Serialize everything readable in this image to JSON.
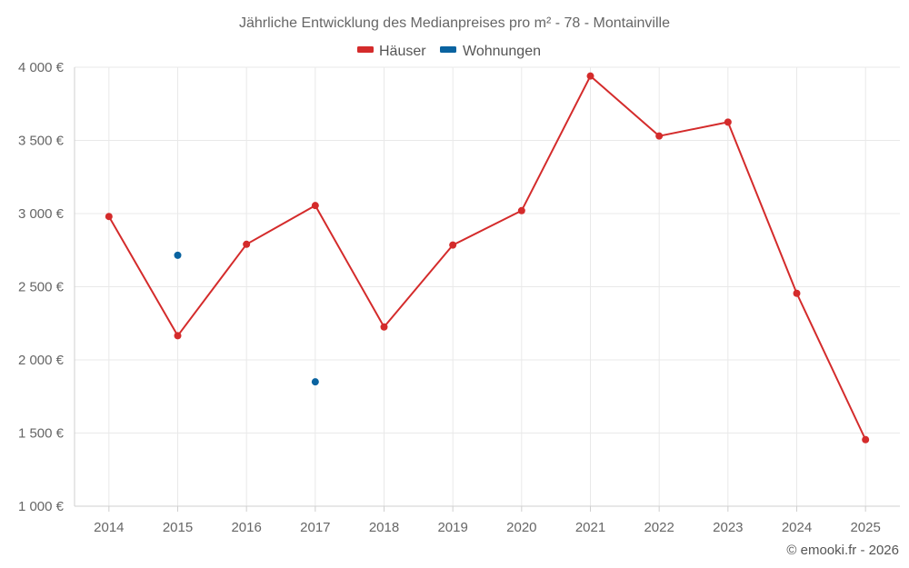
{
  "chart_data": {
    "type": "line",
    "title": "Jährliche Entwicklung des Medianpreises pro m² - 78 - Montainville",
    "categories": [
      "2014",
      "2015",
      "2016",
      "2017",
      "2018",
      "2019",
      "2020",
      "2021",
      "2022",
      "2023",
      "2024",
      "2025"
    ],
    "series": [
      {
        "name": "Häuser",
        "color": "#d42b2b",
        "values": [
          2980,
          2165,
          2790,
          3055,
          2225,
          2785,
          3020,
          3940,
          3530,
          3625,
          2455,
          1455
        ]
      },
      {
        "name": "Wohnungen",
        "color": "#0a63a0",
        "values": [
          null,
          2715,
          null,
          1850,
          null,
          null,
          null,
          null,
          null,
          null,
          null,
          null
        ]
      }
    ],
    "ylim": [
      1000,
      4000
    ],
    "yticks": [
      1000,
      1500,
      2000,
      2500,
      3000,
      3500,
      4000
    ],
    "ytick_labels": [
      "1 000 €",
      "1 500 €",
      "2 000 €",
      "2 500 €",
      "3 000 €",
      "3 500 €",
      "4 000 €"
    ],
    "grid": true,
    "legend_position": "top-center"
  },
  "credit": "© emooki.fr - 2026"
}
